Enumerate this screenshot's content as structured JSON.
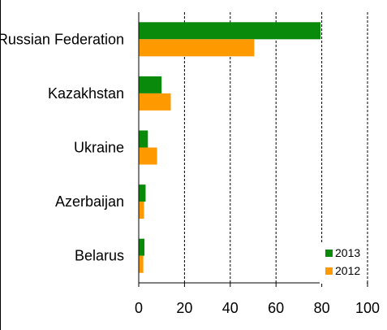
{
  "chart_data": {
    "type": "bar",
    "orientation": "horizontal",
    "categories": [
      "Russian Federation",
      "Kazakhstan",
      "Ukraine",
      "Azerbaijan",
      "Belarus"
    ],
    "series": [
      {
        "name": "2013",
        "values": [
          79.5,
          10,
          4,
          3,
          2.5
        ],
        "color": "#0a8a0a"
      },
      {
        "name": "2012",
        "values": [
          50.5,
          14,
          8,
          2.3,
          2
        ],
        "color": "#ff9900"
      }
    ],
    "xlim": [
      0,
      100
    ],
    "xticks": [
      0,
      20,
      40,
      60,
      80,
      100
    ],
    "grid": "vertical dashed",
    "legend": "bottom-right",
    "title": "",
    "xlabel": "",
    "ylabel": ""
  }
}
